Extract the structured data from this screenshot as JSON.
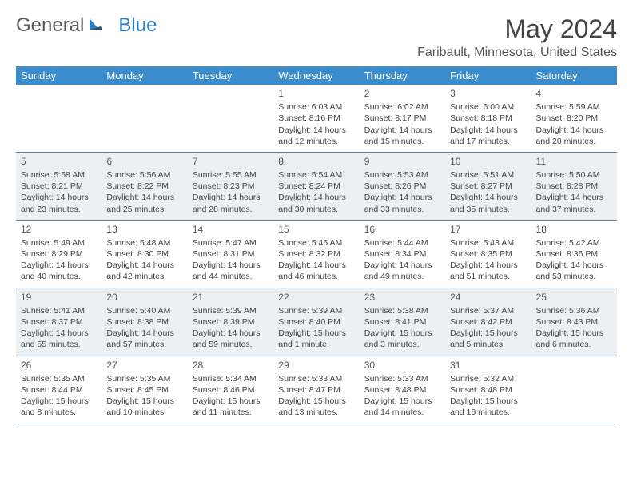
{
  "logo": {
    "text1": "General",
    "text2": "Blue"
  },
  "title": "May 2024",
  "location": "Faribault, Minnesota, United States",
  "headers": [
    "Sunday",
    "Monday",
    "Tuesday",
    "Wednesday",
    "Thursday",
    "Friday",
    "Saturday"
  ],
  "colors": {
    "header_bg": "#3b8ccc",
    "header_text": "#ffffff",
    "shade_bg": "#edf0f2",
    "border": "#5b7a99",
    "text": "#444444",
    "logo_gray": "#5a5a5a",
    "logo_blue": "#2c7ec4"
  },
  "weeks": [
    [
      {
        "day": "",
        "lines": []
      },
      {
        "day": "",
        "lines": []
      },
      {
        "day": "",
        "lines": []
      },
      {
        "day": "1",
        "lines": [
          "Sunrise: 6:03 AM",
          "Sunset: 8:16 PM",
          "Daylight: 14 hours",
          "and 12 minutes."
        ]
      },
      {
        "day": "2",
        "lines": [
          "Sunrise: 6:02 AM",
          "Sunset: 8:17 PM",
          "Daylight: 14 hours",
          "and 15 minutes."
        ]
      },
      {
        "day": "3",
        "lines": [
          "Sunrise: 6:00 AM",
          "Sunset: 8:18 PM",
          "Daylight: 14 hours",
          "and 17 minutes."
        ]
      },
      {
        "day": "4",
        "lines": [
          "Sunrise: 5:59 AM",
          "Sunset: 8:20 PM",
          "Daylight: 14 hours",
          "and 20 minutes."
        ]
      }
    ],
    [
      {
        "day": "5",
        "lines": [
          "Sunrise: 5:58 AM",
          "Sunset: 8:21 PM",
          "Daylight: 14 hours",
          "and 23 minutes."
        ]
      },
      {
        "day": "6",
        "lines": [
          "Sunrise: 5:56 AM",
          "Sunset: 8:22 PM",
          "Daylight: 14 hours",
          "and 25 minutes."
        ]
      },
      {
        "day": "7",
        "lines": [
          "Sunrise: 5:55 AM",
          "Sunset: 8:23 PM",
          "Daylight: 14 hours",
          "and 28 minutes."
        ]
      },
      {
        "day": "8",
        "lines": [
          "Sunrise: 5:54 AM",
          "Sunset: 8:24 PM",
          "Daylight: 14 hours",
          "and 30 minutes."
        ]
      },
      {
        "day": "9",
        "lines": [
          "Sunrise: 5:53 AM",
          "Sunset: 8:26 PM",
          "Daylight: 14 hours",
          "and 33 minutes."
        ]
      },
      {
        "day": "10",
        "lines": [
          "Sunrise: 5:51 AM",
          "Sunset: 8:27 PM",
          "Daylight: 14 hours",
          "and 35 minutes."
        ]
      },
      {
        "day": "11",
        "lines": [
          "Sunrise: 5:50 AM",
          "Sunset: 8:28 PM",
          "Daylight: 14 hours",
          "and 37 minutes."
        ]
      }
    ],
    [
      {
        "day": "12",
        "lines": [
          "Sunrise: 5:49 AM",
          "Sunset: 8:29 PM",
          "Daylight: 14 hours",
          "and 40 minutes."
        ]
      },
      {
        "day": "13",
        "lines": [
          "Sunrise: 5:48 AM",
          "Sunset: 8:30 PM",
          "Daylight: 14 hours",
          "and 42 minutes."
        ]
      },
      {
        "day": "14",
        "lines": [
          "Sunrise: 5:47 AM",
          "Sunset: 8:31 PM",
          "Daylight: 14 hours",
          "and 44 minutes."
        ]
      },
      {
        "day": "15",
        "lines": [
          "Sunrise: 5:45 AM",
          "Sunset: 8:32 PM",
          "Daylight: 14 hours",
          "and 46 minutes."
        ]
      },
      {
        "day": "16",
        "lines": [
          "Sunrise: 5:44 AM",
          "Sunset: 8:34 PM",
          "Daylight: 14 hours",
          "and 49 minutes."
        ]
      },
      {
        "day": "17",
        "lines": [
          "Sunrise: 5:43 AM",
          "Sunset: 8:35 PM",
          "Daylight: 14 hours",
          "and 51 minutes."
        ]
      },
      {
        "day": "18",
        "lines": [
          "Sunrise: 5:42 AM",
          "Sunset: 8:36 PM",
          "Daylight: 14 hours",
          "and 53 minutes."
        ]
      }
    ],
    [
      {
        "day": "19",
        "lines": [
          "Sunrise: 5:41 AM",
          "Sunset: 8:37 PM",
          "Daylight: 14 hours",
          "and 55 minutes."
        ]
      },
      {
        "day": "20",
        "lines": [
          "Sunrise: 5:40 AM",
          "Sunset: 8:38 PM",
          "Daylight: 14 hours",
          "and 57 minutes."
        ]
      },
      {
        "day": "21",
        "lines": [
          "Sunrise: 5:39 AM",
          "Sunset: 8:39 PM",
          "Daylight: 14 hours",
          "and 59 minutes."
        ]
      },
      {
        "day": "22",
        "lines": [
          "Sunrise: 5:39 AM",
          "Sunset: 8:40 PM",
          "Daylight: 15 hours",
          "and 1 minute."
        ]
      },
      {
        "day": "23",
        "lines": [
          "Sunrise: 5:38 AM",
          "Sunset: 8:41 PM",
          "Daylight: 15 hours",
          "and 3 minutes."
        ]
      },
      {
        "day": "24",
        "lines": [
          "Sunrise: 5:37 AM",
          "Sunset: 8:42 PM",
          "Daylight: 15 hours",
          "and 5 minutes."
        ]
      },
      {
        "day": "25",
        "lines": [
          "Sunrise: 5:36 AM",
          "Sunset: 8:43 PM",
          "Daylight: 15 hours",
          "and 6 minutes."
        ]
      }
    ],
    [
      {
        "day": "26",
        "lines": [
          "Sunrise: 5:35 AM",
          "Sunset: 8:44 PM",
          "Daylight: 15 hours",
          "and 8 minutes."
        ]
      },
      {
        "day": "27",
        "lines": [
          "Sunrise: 5:35 AM",
          "Sunset: 8:45 PM",
          "Daylight: 15 hours",
          "and 10 minutes."
        ]
      },
      {
        "day": "28",
        "lines": [
          "Sunrise: 5:34 AM",
          "Sunset: 8:46 PM",
          "Daylight: 15 hours",
          "and 11 minutes."
        ]
      },
      {
        "day": "29",
        "lines": [
          "Sunrise: 5:33 AM",
          "Sunset: 8:47 PM",
          "Daylight: 15 hours",
          "and 13 minutes."
        ]
      },
      {
        "day": "30",
        "lines": [
          "Sunrise: 5:33 AM",
          "Sunset: 8:48 PM",
          "Daylight: 15 hours",
          "and 14 minutes."
        ]
      },
      {
        "day": "31",
        "lines": [
          "Sunrise: 5:32 AM",
          "Sunset: 8:48 PM",
          "Daylight: 15 hours",
          "and 16 minutes."
        ]
      },
      {
        "day": "",
        "lines": []
      }
    ]
  ]
}
